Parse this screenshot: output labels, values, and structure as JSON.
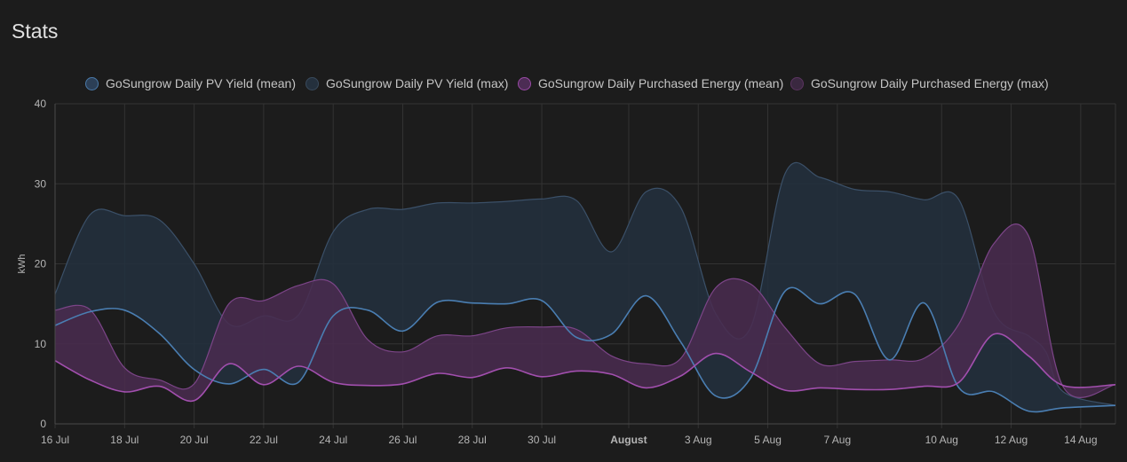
{
  "card": {
    "title": "Stats"
  },
  "legend": [
    {
      "label": "GoSungrow Daily PV Yield (mean)",
      "color": "#4a79a8",
      "fill": "#2c3f56"
    },
    {
      "label": "GoSungrow Daily PV Yield (max)",
      "color": "#394a5c",
      "fill": "#24303d"
    },
    {
      "label": "GoSungrow Daily Purchased Energy (mean)",
      "color": "#9a4aa6",
      "fill": "#4c2c54"
    },
    {
      "label": "GoSungrow Daily Purchased Energy (max)",
      "color": "#5b3460",
      "fill": "#3a2840"
    }
  ],
  "colors": {
    "pv_line": "#4a7eb2",
    "pv_band": "#23303e",
    "pv_band_edge": "#3b5068",
    "purchase_line": "#a24fae",
    "purchase_band": "#4a2b50",
    "purchase_band_edge": "#7c4588",
    "grid": "#333333",
    "background": "#1c1c1c"
  },
  "chart_data": {
    "type": "area",
    "ylabel": "kWh",
    "ylim": [
      0,
      40
    ],
    "yticks": [
      0,
      10,
      20,
      30,
      40
    ],
    "x_ticks": [
      {
        "label": "16 Jul",
        "day": 0
      },
      {
        "label": "18 Jul",
        "day": 2
      },
      {
        "label": "20 Jul",
        "day": 4
      },
      {
        "label": "22 Jul",
        "day": 6
      },
      {
        "label": "24 Jul",
        "day": 8
      },
      {
        "label": "26 Jul",
        "day": 10
      },
      {
        "label": "28 Jul",
        "day": 12
      },
      {
        "label": "30 Jul",
        "day": 14
      },
      {
        "label": "August",
        "day": 16.5,
        "major": true
      },
      {
        "label": "3 Aug",
        "day": 18.5
      },
      {
        "label": "5 Aug",
        "day": 20.5
      },
      {
        "label": "7 Aug",
        "day": 22.5
      },
      {
        "label": "10 Aug",
        "day": 25.5
      },
      {
        "label": "12 Aug",
        "day": 27.5
      },
      {
        "label": "14 Aug",
        "day": 29.5
      }
    ],
    "x_max_day": 30.5,
    "series": [
      {
        "name": "GoSungrow Daily PV Yield (mean)",
        "kind": "line",
        "points": [
          [
            0,
            12.3
          ],
          [
            1,
            14.0
          ],
          [
            2,
            14.2
          ],
          [
            3,
            11.3
          ],
          [
            4,
            6.8
          ],
          [
            5,
            5.0
          ],
          [
            6,
            6.8
          ],
          [
            7,
            5.2
          ],
          [
            8,
            13.5
          ],
          [
            9,
            14.2
          ],
          [
            10,
            11.6
          ],
          [
            11,
            15.2
          ],
          [
            12,
            15.1
          ],
          [
            13,
            15.0
          ],
          [
            14,
            15.4
          ],
          [
            15,
            10.8
          ],
          [
            16,
            11.2
          ],
          [
            17,
            16.0
          ],
          [
            18,
            10.2
          ],
          [
            19,
            3.5
          ],
          [
            20,
            5.7
          ],
          [
            21,
            16.6
          ],
          [
            22,
            15.0
          ],
          [
            23,
            16.2
          ],
          [
            24,
            8.0
          ],
          [
            25,
            15.1
          ],
          [
            26,
            4.5
          ],
          [
            27,
            4.0
          ],
          [
            28,
            1.6
          ],
          [
            29,
            2.0
          ],
          [
            30.5,
            2.3
          ]
        ]
      },
      {
        "name": "GoSungrow Daily PV Yield (max)",
        "kind": "band",
        "points": [
          [
            0,
            16.2
          ],
          [
            1,
            26.1
          ],
          [
            2,
            26.0
          ],
          [
            3,
            25.5
          ],
          [
            4,
            20.0
          ],
          [
            5,
            12.5
          ],
          [
            6,
            13.5
          ],
          [
            7,
            13.6
          ],
          [
            8,
            24.0
          ],
          [
            9,
            26.8
          ],
          [
            10,
            26.8
          ],
          [
            11,
            27.6
          ],
          [
            12,
            27.6
          ],
          [
            13,
            27.8
          ],
          [
            14,
            28.1
          ],
          [
            15,
            27.9
          ],
          [
            16,
            21.5
          ],
          [
            17,
            29.0
          ],
          [
            18,
            27.0
          ],
          [
            19,
            13.8
          ],
          [
            20,
            12.0
          ],
          [
            21,
            31.3
          ],
          [
            22,
            30.8
          ],
          [
            23,
            29.3
          ],
          [
            24,
            29.0
          ],
          [
            25,
            28.0
          ],
          [
            26,
            28.0
          ],
          [
            27,
            14.0
          ],
          [
            28,
            11.0
          ],
          [
            28.5,
            9.0
          ],
          [
            29,
            4.0
          ],
          [
            30.5,
            2.3
          ]
        ]
      },
      {
        "name": "GoSungrow Daily Purchased Energy (mean)",
        "kind": "line",
        "points": [
          [
            0,
            7.9
          ],
          [
            1,
            5.5
          ],
          [
            2,
            4.0
          ],
          [
            3,
            4.7
          ],
          [
            4,
            2.9
          ],
          [
            5,
            7.5
          ],
          [
            6,
            4.9
          ],
          [
            7,
            7.2
          ],
          [
            8,
            5.2
          ],
          [
            9,
            4.8
          ],
          [
            10,
            5.0
          ],
          [
            11,
            6.3
          ],
          [
            12,
            5.8
          ],
          [
            13,
            7.0
          ],
          [
            14,
            5.9
          ],
          [
            15,
            6.6
          ],
          [
            16,
            6.2
          ],
          [
            17,
            4.5
          ],
          [
            18,
            6.0
          ],
          [
            19,
            8.8
          ],
          [
            20,
            6.5
          ],
          [
            21,
            4.2
          ],
          [
            22,
            4.5
          ],
          [
            23,
            4.3
          ],
          [
            24,
            4.3
          ],
          [
            25,
            4.7
          ],
          [
            26,
            5.2
          ],
          [
            27,
            11.2
          ],
          [
            28,
            8.5
          ],
          [
            29,
            4.8
          ],
          [
            30.5,
            4.9
          ]
        ]
      },
      {
        "name": "GoSungrow Daily Purchased Energy (max)",
        "kind": "band",
        "points": [
          [
            0,
            14.2
          ],
          [
            1,
            14.3
          ],
          [
            2,
            7.0
          ],
          [
            3,
            5.5
          ],
          [
            4,
            5.0
          ],
          [
            5,
            15.0
          ],
          [
            6,
            15.4
          ],
          [
            7,
            17.3
          ],
          [
            8,
            17.5
          ],
          [
            9,
            10.5
          ],
          [
            10,
            9.0
          ],
          [
            11,
            11.0
          ],
          [
            12,
            11.0
          ],
          [
            13,
            12.0
          ],
          [
            14,
            12.1
          ],
          [
            15,
            11.8
          ],
          [
            16,
            8.5
          ],
          [
            17,
            7.5
          ],
          [
            18,
            8.2
          ],
          [
            19,
            17.0
          ],
          [
            20,
            17.5
          ],
          [
            21,
            12.0
          ],
          [
            22,
            7.5
          ],
          [
            23,
            7.8
          ],
          [
            24,
            8.0
          ],
          [
            25,
            8.2
          ],
          [
            26,
            12.5
          ],
          [
            27,
            22.5
          ],
          [
            28,
            23.5
          ],
          [
            29,
            4.6
          ],
          [
            30.5,
            4.9
          ]
        ]
      }
    ]
  }
}
